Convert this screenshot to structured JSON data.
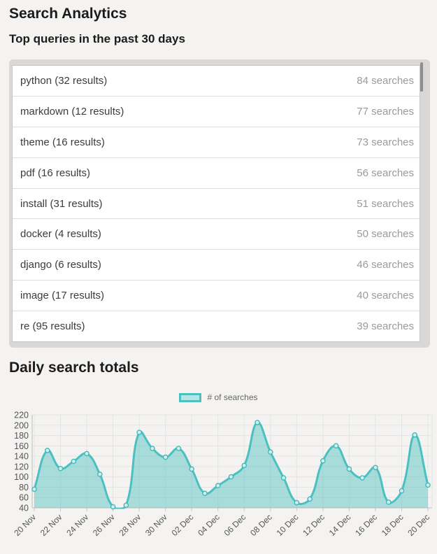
{
  "page": {
    "title": "Search Analytics",
    "subtitle": "Top queries in the past 30 days",
    "chart_section_title": "Daily search totals"
  },
  "top_queries": {
    "items": [
      {
        "label": "python (32 results)",
        "count": "84 searches"
      },
      {
        "label": "markdown (12 results)",
        "count": "77 searches"
      },
      {
        "label": "theme (16 results)",
        "count": "73 searches"
      },
      {
        "label": "pdf (16 results)",
        "count": "56 searches"
      },
      {
        "label": "install (31 results)",
        "count": "51 searches"
      },
      {
        "label": "docker (4 results)",
        "count": "50 searches"
      },
      {
        "label": "django (6 results)",
        "count": "46 searches"
      },
      {
        "label": "image (17 results)",
        "count": "40 searches"
      },
      {
        "label": "re (95 results)",
        "count": "39 searches"
      }
    ]
  },
  "chart_data": {
    "type": "area",
    "title": "Daily search totals",
    "xlabel": "",
    "ylabel": "",
    "legend": {
      "label": "# of searches",
      "position": "top"
    },
    "x": [
      "20 Nov",
      "21 Nov",
      "22 Nov",
      "23 Nov",
      "24 Nov",
      "25 Nov",
      "26 Nov",
      "27 Nov",
      "28 Nov",
      "29 Nov",
      "30 Nov",
      "01 Dec",
      "02 Dec",
      "03 Dec",
      "04 Dec",
      "05 Dec",
      "06 Dec",
      "07 Dec",
      "08 Dec",
      "09 Dec",
      "10 Dec",
      "11 Dec",
      "12 Dec",
      "13 Dec",
      "14 Dec",
      "15 Dec",
      "16 Dec",
      "17 Dec",
      "18 Dec",
      "19 Dec",
      "20 Dec"
    ],
    "series": [
      {
        "name": "# of searches",
        "values": [
          76,
          151,
          116,
          130,
          145,
          105,
          42,
          45,
          186,
          155,
          138,
          155,
          115,
          68,
          83,
          100,
          122,
          205,
          148,
          98,
          50,
          57,
          131,
          160,
          115,
          98,
          118,
          51,
          73,
          181,
          84
        ]
      }
    ],
    "ylim": [
      40,
      220
    ],
    "ytick_step": 20,
    "x_label_every": 2,
    "grid": true,
    "colors": {
      "line": "#4bc0c0",
      "fill": "rgba(75,192,192,0.45)",
      "point_fill": "#d2efee",
      "point_stroke": "#45b9b9",
      "grid": "#e4e4e4",
      "axis_line": "#bdbdbd",
      "tick": "#c8c8c8",
      "axis_text": "#555555"
    }
  }
}
